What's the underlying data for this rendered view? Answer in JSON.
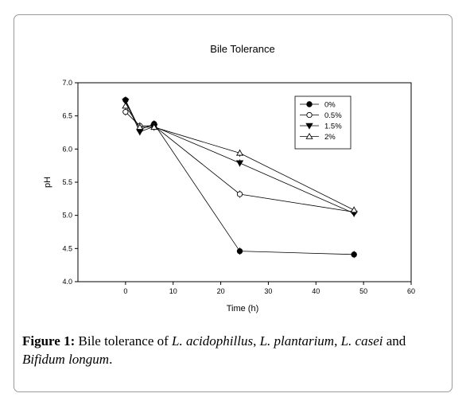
{
  "chart_data": {
    "type": "line",
    "title": "Bile Tolerance",
    "xlabel": "Time (h)",
    "ylabel": "pH",
    "xlim": [
      -10,
      60
    ],
    "ylim": [
      4.0,
      7.0
    ],
    "xticks": [
      0,
      10,
      20,
      30,
      40,
      50,
      60
    ],
    "yticks": [
      "4.0",
      "4.5",
      "5.0",
      "5.5",
      "6.0",
      "6.5",
      "7.0"
    ],
    "grid": false,
    "legend_position": "top-right",
    "series": [
      {
        "name": "0%",
        "marker": "filled-circle",
        "x": [
          0,
          3,
          6,
          24,
          48
        ],
        "y": [
          6.74,
          6.29,
          6.38,
          4.46,
          4.41
        ]
      },
      {
        "name": "0.5%",
        "marker": "open-circle",
        "x": [
          0,
          3,
          6,
          24,
          48
        ],
        "y": [
          6.56,
          6.35,
          6.35,
          5.32,
          5.05
        ]
      },
      {
        "name": "1.5%",
        "marker": "filled-triangle-down",
        "x": [
          0,
          3,
          6,
          24,
          48
        ],
        "y": [
          6.72,
          6.26,
          6.34,
          5.79,
          5.03
        ]
      },
      {
        "name": "2%",
        "marker": "open-triangle-up",
        "x": [
          0,
          3,
          6,
          24,
          48
        ],
        "y": [
          6.65,
          6.33,
          6.33,
          5.94,
          5.08
        ]
      }
    ]
  },
  "caption": {
    "label": "Figure 1:",
    "parts": [
      {
        "text": " Bile tolerance of ",
        "italic": false
      },
      {
        "text": "L. acidophillus",
        "italic": true
      },
      {
        "text": ", ",
        "italic": false
      },
      {
        "text": "L. plantarium",
        "italic": true
      },
      {
        "text": ", ",
        "italic": false
      },
      {
        "text": "L. casei",
        "italic": true
      },
      {
        "text": " and ",
        "italic": false
      },
      {
        "text": "Bifidum longum",
        "italic": true
      },
      {
        "text": ".",
        "italic": false
      }
    ]
  }
}
